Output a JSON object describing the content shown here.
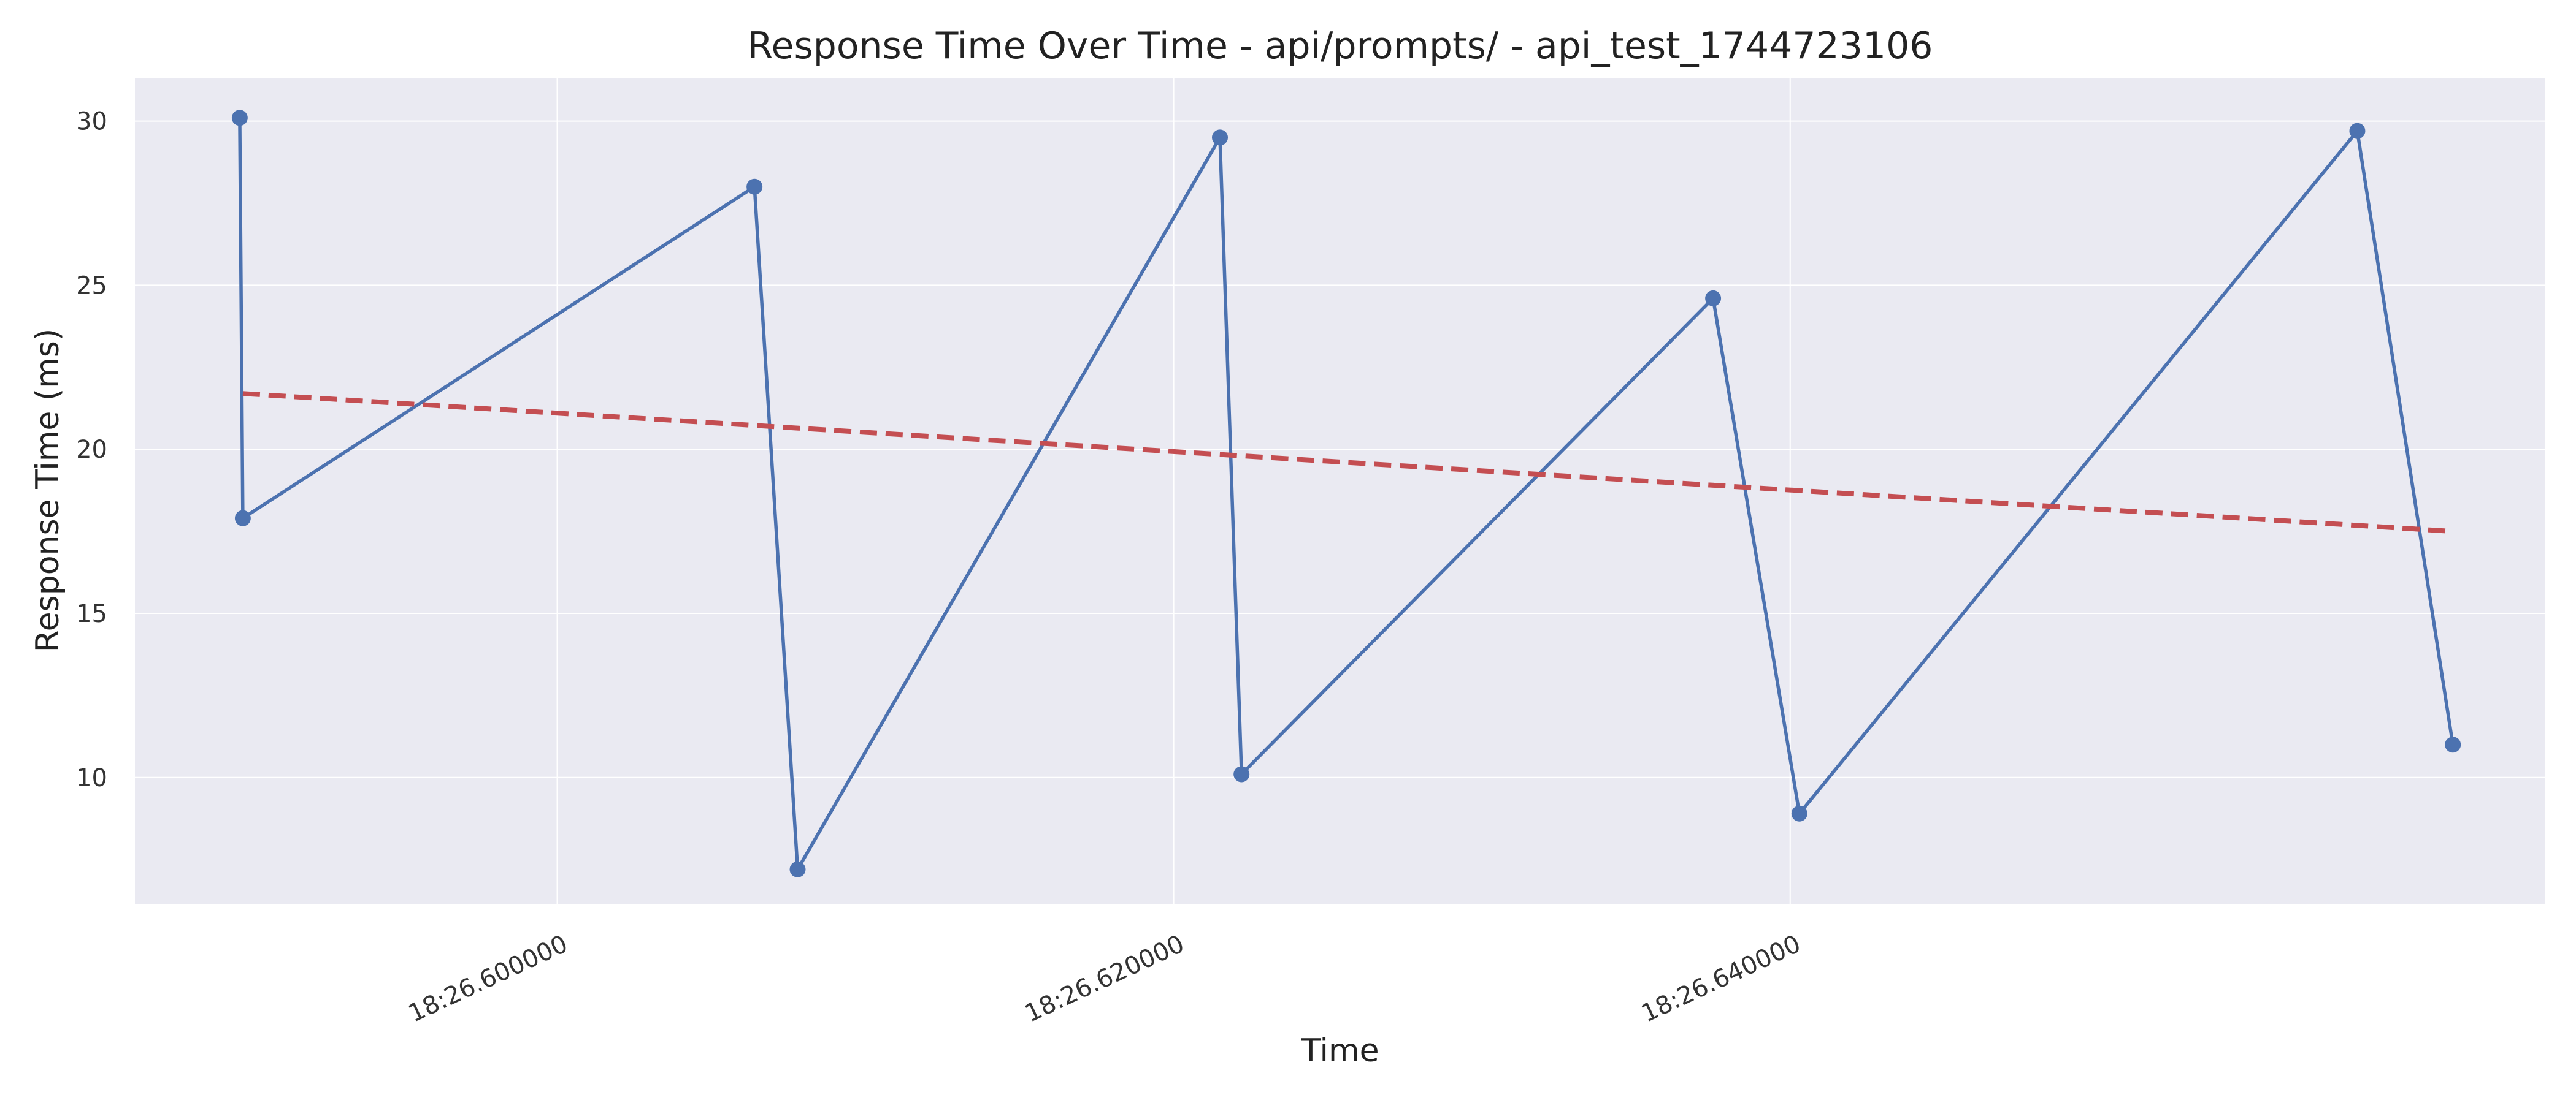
{
  "chart_data": {
    "type": "line",
    "title": "Response Time Over Time - api/prompts/ - api_test_1744723106",
    "xlabel": "Time",
    "ylabel": "Response Time (ms)",
    "x_tick_labels": [
      "18:26.600000",
      "18:26.620000",
      "18:26.640000"
    ],
    "x_tick_values": [
      0.6,
      0.62,
      0.64
    ],
    "y_ticks": [
      10,
      15,
      20,
      25,
      30
    ],
    "xlim": [
      0.5863,
      0.6645
    ],
    "ylim": [
      6.15,
      31.3
    ],
    "grid": true,
    "series": [
      {
        "kind": "line-markers",
        "color": "#4c72b0",
        "x": [
          0.5897,
          0.5898,
          0.6064,
          0.6078,
          0.6215,
          0.6222,
          0.6375,
          0.6403,
          0.6584,
          0.6615
        ],
        "y": [
          30.1,
          17.9,
          28.0,
          7.2,
          29.5,
          10.1,
          24.6,
          8.9,
          29.7,
          11.0
        ]
      },
      {
        "kind": "trend-dashed",
        "color": "#c44e52",
        "x": [
          0.5898,
          0.6615
        ],
        "y": [
          21.7,
          17.5
        ]
      }
    ],
    "plot_background": "#eaeaf2",
    "grid_color": "#ffffff"
  }
}
